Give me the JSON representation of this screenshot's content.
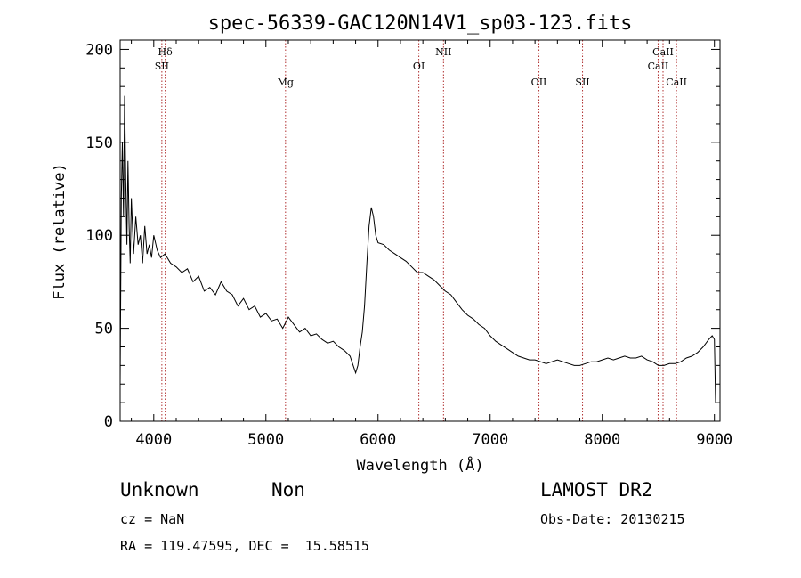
{
  "chart_data": {
    "type": "line",
    "title": "spec-56339-GAC120N14V1_sp03-123.fits",
    "xlabel": "Wavelength (Å)",
    "ylabel": "Flux (relative)",
    "xlim": [
      3700,
      9050
    ],
    "ylim": [
      0,
      205
    ],
    "xticks": [
      4000,
      5000,
      6000,
      7000,
      8000,
      9000
    ],
    "yticks": [
      0,
      50,
      100,
      150,
      200
    ],
    "x": [
      3700,
      3710,
      3720,
      3730,
      3740,
      3750,
      3760,
      3770,
      3780,
      3790,
      3800,
      3820,
      3840,
      3860,
      3880,
      3900,
      3920,
      3940,
      3960,
      3980,
      4000,
      4030,
      4060,
      4100,
      4150,
      4200,
      4250,
      4300,
      4350,
      4400,
      4450,
      4500,
      4550,
      4600,
      4650,
      4700,
      4750,
      4800,
      4850,
      4900,
      4950,
      5000,
      5050,
      5100,
      5150,
      5200,
      5250,
      5300,
      5350,
      5400,
      5450,
      5500,
      5550,
      5600,
      5650,
      5700,
      5750,
      5800,
      5820,
      5840,
      5860,
      5880,
      5900,
      5920,
      5940,
      5960,
      5980,
      6000,
      6050,
      6100,
      6150,
      6200,
      6250,
      6300,
      6350,
      6400,
      6450,
      6500,
      6550,
      6600,
      6650,
      6700,
      6750,
      6800,
      6850,
      6900,
      6950,
      7000,
      7050,
      7100,
      7150,
      7200,
      7250,
      7300,
      7350,
      7400,
      7450,
      7500,
      7550,
      7600,
      7650,
      7700,
      7750,
      7800,
      7850,
      7900,
      7950,
      8000,
      8050,
      8100,
      8150,
      8200,
      8250,
      8300,
      8350,
      8400,
      8450,
      8500,
      8550,
      8600,
      8650,
      8700,
      8750,
      8800,
      8850,
      8900,
      8950,
      8980,
      9000,
      9010
    ],
    "y": [
      20,
      120,
      150,
      110,
      175,
      130,
      95,
      140,
      105,
      85,
      120,
      90,
      110,
      95,
      100,
      85,
      105,
      90,
      95,
      88,
      100,
      92,
      88,
      90,
      85,
      83,
      80,
      82,
      75,
      78,
      70,
      72,
      68,
      75,
      70,
      68,
      62,
      66,
      60,
      62,
      56,
      58,
      54,
      55,
      50,
      56,
      52,
      48,
      50,
      46,
      47,
      44,
      42,
      43,
      40,
      38,
      35,
      26,
      30,
      40,
      48,
      62,
      85,
      105,
      115,
      110,
      100,
      96,
      95,
      92,
      90,
      88,
      86,
      83,
      80,
      80,
      78,
      76,
      73,
      70,
      68,
      64,
      60,
      57,
      55,
      52,
      50,
      46,
      43,
      41,
      39,
      37,
      35,
      34,
      33,
      33,
      32,
      31,
      32,
      33,
      32,
      31,
      30,
      30,
      31,
      32,
      32,
      33,
      34,
      33,
      34,
      35,
      34,
      34,
      35,
      33,
      32,
      30,
      30,
      31,
      31,
      32,
      34,
      35,
      37,
      40,
      44,
      46,
      44,
      10
    ]
  },
  "lines": [
    {
      "label": "Hδ",
      "wave": 4102,
      "row": 1
    },
    {
      "label": "SII",
      "wave": 4072,
      "row": 2
    },
    {
      "label": "Mg",
      "wave": 5175,
      "row": 3
    },
    {
      "label": "OI",
      "wave": 6364,
      "row": 2
    },
    {
      "label": "NII",
      "wave": 6584,
      "row": 1
    },
    {
      "label": "OII",
      "wave": 7435,
      "row": 3
    },
    {
      "label": "SII",
      "wave": 7824,
      "row": 3
    },
    {
      "label": "CaII",
      "wave": 8498,
      "row": 2
    },
    {
      "label": "CaII",
      "wave": 8542,
      "row": 1
    },
    {
      "label": "CaII",
      "wave": 8662,
      "row": 3
    }
  ],
  "info": {
    "class": "Unknown",
    "subclass": "Non",
    "cz": "cz = NaN",
    "coords": "RA = 119.47595, DEC =  15.58515",
    "survey": "LAMOST DR2",
    "obsdate": "Obs-Date: 20130215"
  }
}
